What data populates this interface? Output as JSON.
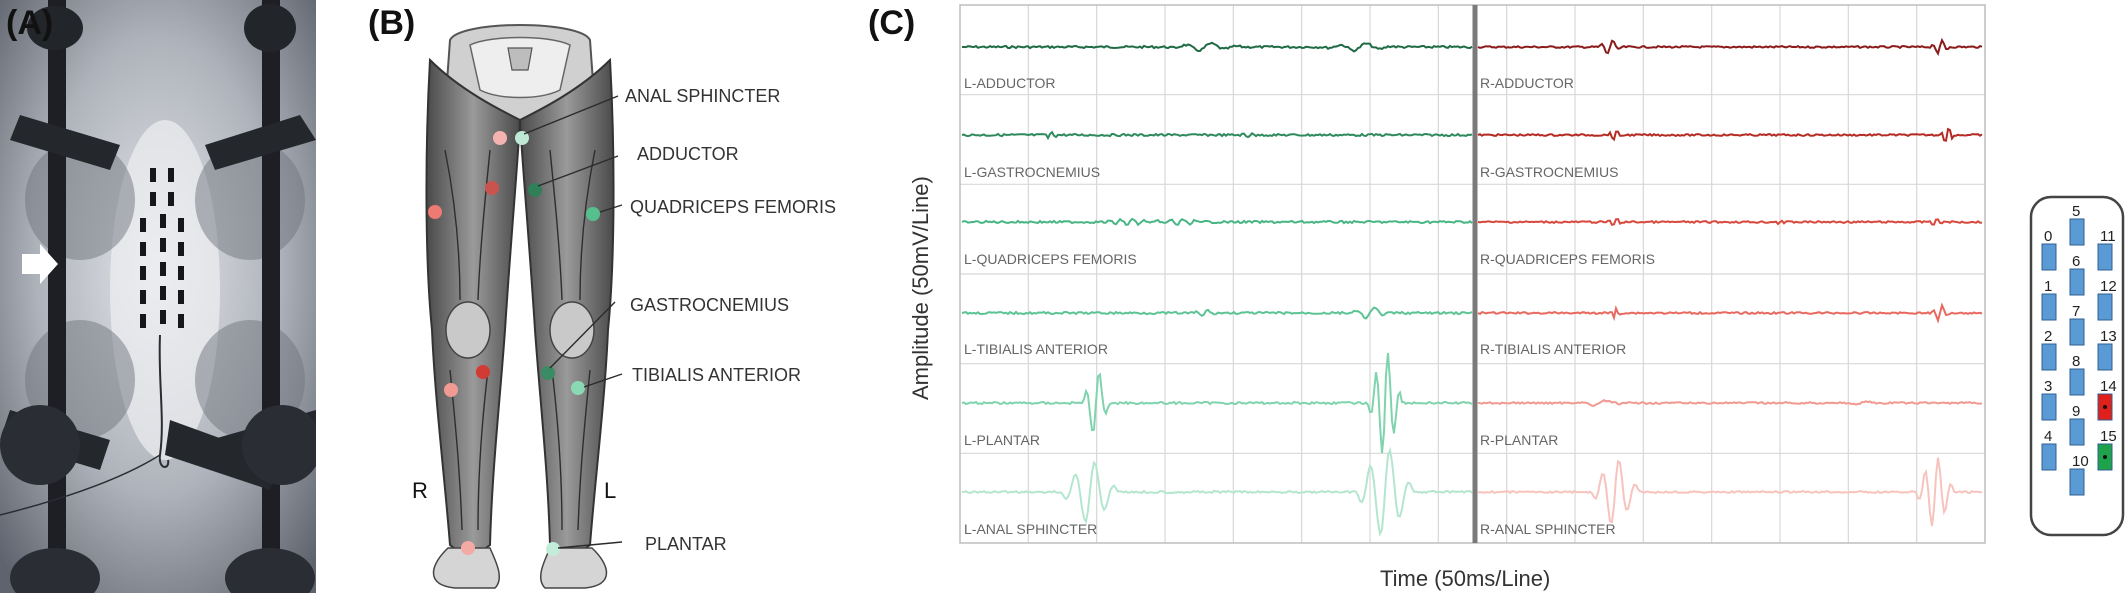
{
  "panels": {
    "a_label": "(A)",
    "b_label": "(B)",
    "c_label": "(C)"
  },
  "anatomy": {
    "side_right": "R",
    "side_left": "L",
    "muscles": [
      "ANAL SPHINCTER",
      "ADDUCTOR",
      "QUADRICEPS FEMORIS",
      "GASTROCNEMIUS",
      "TIBIALIS ANTERIOR",
      "PLANTAR"
    ]
  },
  "emg": {
    "y_axis_title": "Amplitude (50mV/Line)",
    "x_axis_title": "Time (50ms/Line)",
    "left_traces": [
      "L-ADDUCTOR",
      "L-GASTROCNEMIUS",
      "L-QUADRICEPS FEMORIS",
      "L-TIBIALIS ANTERIOR",
      "L-PLANTAR",
      "L-ANAL SPHINCTER"
    ],
    "right_traces": [
      "R-ADDUCTOR",
      "R-GASTROCNEMIUS",
      "R-QUADRICEPS FEMORIS",
      "R-TIBIALIS ANTERIOR",
      "R-PLANTAR",
      "R-ANAL SPHINCTER"
    ],
    "left_colors": [
      "#1f6b45",
      "#2e8a5c",
      "#47b683",
      "#5cc395",
      "#7fd3ad",
      "#b4e6cf"
    ],
    "right_colors": [
      "#8b1a1a",
      "#b52a22",
      "#d9483c",
      "#e8695f",
      "#f19990",
      "#f7c3bd"
    ]
  },
  "electrode": {
    "left_column": [
      "0",
      "1",
      "2",
      "3",
      "4"
    ],
    "middle_column": [
      "5",
      "6",
      "7",
      "8",
      "9",
      "10"
    ],
    "right_column": [
      "11",
      "12",
      "13",
      "14",
      "15"
    ],
    "cathode_color": "#e0201b",
    "anode_color": "#1fa34a",
    "contact_color": "#5b9bd5"
  }
}
